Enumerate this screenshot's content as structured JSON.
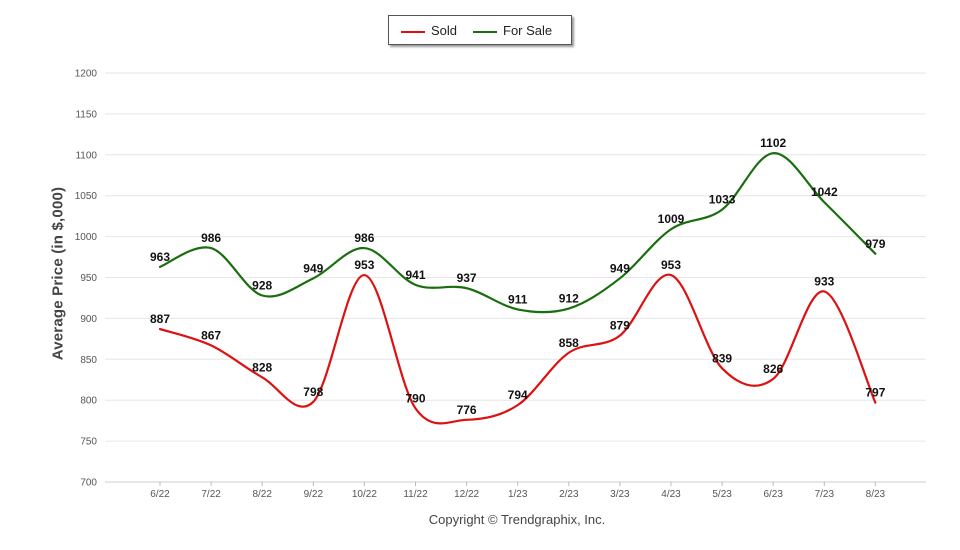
{
  "chart_data": {
    "type": "line",
    "title": "",
    "xlabel": "",
    "ylabel": "Average Price (in $,000)",
    "ylim": [
      700,
      1200
    ],
    "yticks": [
      "700",
      "750",
      "800",
      "850",
      "900",
      "950",
      "1000",
      "1050",
      "1100",
      "1150",
      "1200"
    ],
    "grid": true,
    "legend": "top-center",
    "categories": [
      "6/22",
      "7/22",
      "8/22",
      "9/22",
      "10/22",
      "11/22",
      "12/22",
      "1/23",
      "2/23",
      "3/23",
      "4/23",
      "5/23",
      "6/23",
      "7/23",
      "8/23"
    ],
    "series": [
      {
        "name": "Sold",
        "color": "#dd1111",
        "values": [
          887,
          867,
          828,
          798,
          953,
          790,
          776,
          794,
          858,
          879,
          953,
          839,
          826,
          933,
          797
        ]
      },
      {
        "name": "For Sale",
        "color": "#1a6e0f",
        "values": [
          963,
          986,
          928,
          949,
          986,
          941,
          937,
          911,
          912,
          949,
          1009,
          1033,
          1102,
          1042,
          979
        ]
      }
    ]
  },
  "legend": {
    "sold_label": "Sold",
    "forsale_label": "For Sale"
  },
  "footer": {
    "copyright": "Copyright © Trendgraphix, Inc."
  }
}
